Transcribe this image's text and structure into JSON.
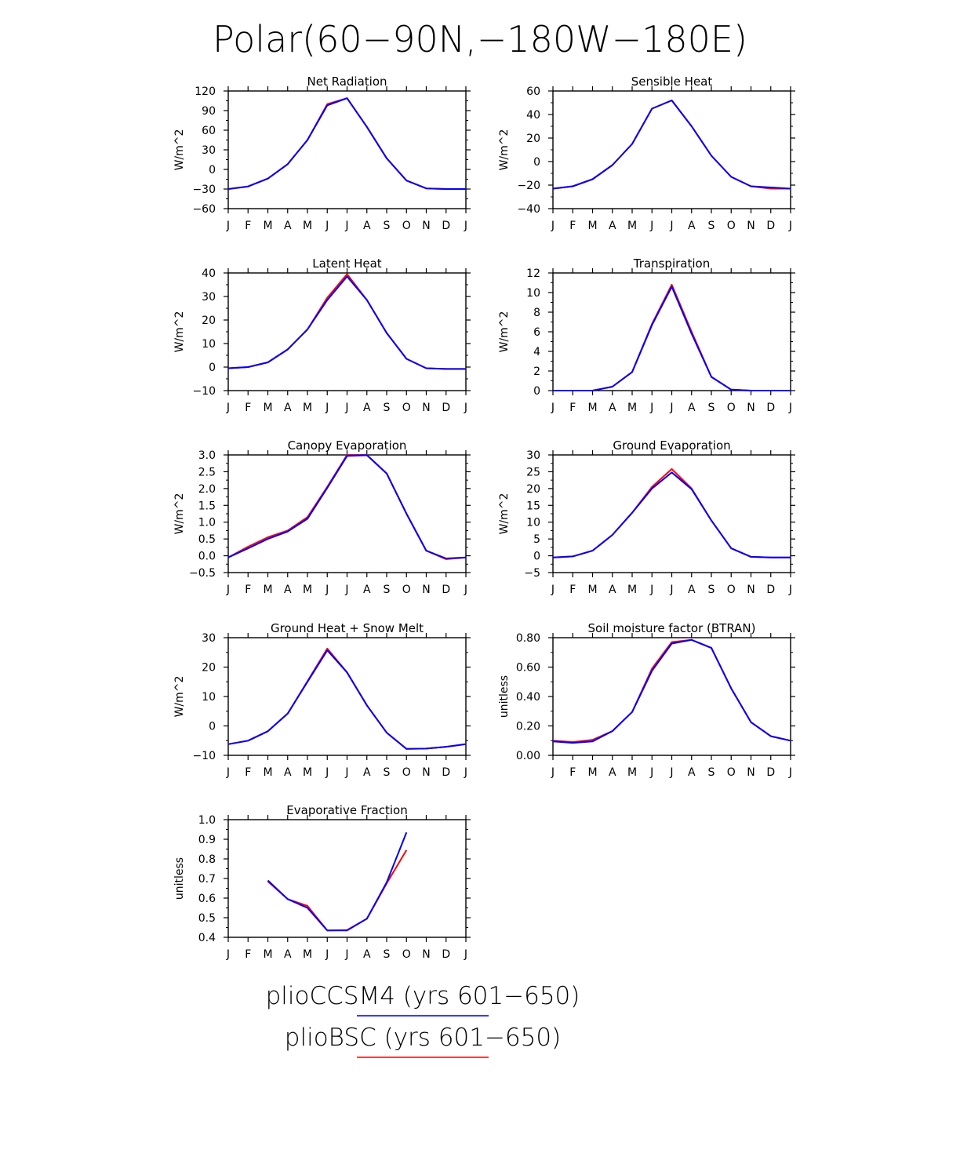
{
  "figure": {
    "title": "Polar(60−90N,−180W−180E)",
    "month_labels": [
      "J",
      "F",
      "M",
      "A",
      "M",
      "J",
      "J",
      "A",
      "S",
      "O",
      "N",
      "D",
      "J"
    ],
    "legend": [
      {
        "label": "plioCCSM4 (yrs 601−650)",
        "color": "#3b3bff"
      },
      {
        "label": "plioBSC (yrs 601−650)",
        "color": "#ff4040"
      }
    ]
  },
  "colors": {
    "series_a": "#ff0000",
    "series_b": "#0000ff"
  },
  "chart_data": [
    {
      "type": "line",
      "title": "Net Radiation",
      "ylabel": "W/m^2",
      "ylim": [
        -60,
        120
      ],
      "yticks": [
        -60,
        -30,
        0,
        30,
        60,
        90,
        120
      ],
      "ytick_labels": [
        "−60",
        "−30",
        "0",
        "30",
        "60",
        "90",
        "120"
      ],
      "series": [
        {
          "values": [
            -30,
            -26,
            -14,
            8,
            45,
            100,
            109,
            65,
            17,
            -17,
            -29,
            -30,
            -30
          ]
        },
        {
          "values": [
            -30,
            -26,
            -14,
            8,
            45,
            98,
            109,
            65,
            17,
            -17,
            -29,
            -30,
            -30
          ]
        }
      ]
    },
    {
      "type": "line",
      "title": "Sensible Heat",
      "ylabel": "W/m^2",
      "ylim": [
        -40,
        60
      ],
      "yticks": [
        -40,
        -20,
        0,
        20,
        40,
        60
      ],
      "ytick_labels": [
        "−40",
        "−20",
        "0",
        "20",
        "40",
        "60"
      ],
      "series": [
        {
          "values": [
            -23,
            -21,
            -15,
            -3,
            15,
            45,
            52,
            30,
            5,
            -13,
            -21,
            -23,
            -23
          ]
        },
        {
          "values": [
            -23,
            -21,
            -15,
            -3,
            15,
            45,
            52,
            30,
            5,
            -13,
            -21,
            -22,
            -23
          ]
        }
      ]
    },
    {
      "type": "line",
      "title": "Latent Heat",
      "ylabel": "W/m^2",
      "ylim": [
        -10,
        40
      ],
      "yticks": [
        -10,
        0,
        10,
        20,
        30,
        40
      ],
      "ytick_labels": [
        "−10",
        "0",
        "10",
        "20",
        "30",
        "40"
      ],
      "series": [
        {
          "values": [
            -0.5,
            0,
            2,
            7.5,
            16,
            29.5,
            39.5,
            28.5,
            14.5,
            3.5,
            -0.5,
            -0.8,
            -0.8
          ]
        },
        {
          "values": [
            -0.5,
            0,
            2,
            7.5,
            16,
            28.5,
            38.5,
            28.5,
            14.5,
            3.5,
            -0.5,
            -0.8,
            -0.8
          ]
        }
      ]
    },
    {
      "type": "line",
      "title": "Transpiration",
      "ylabel": "W/m^2",
      "ylim": [
        0,
        12
      ],
      "yticks": [
        0,
        2,
        4,
        6,
        8,
        10,
        12
      ],
      "ytick_labels": [
        "0",
        "2",
        "4",
        "6",
        "8",
        "10",
        "12"
      ],
      "series": [
        {
          "values": [
            0,
            0,
            0,
            0.4,
            1.9,
            6.8,
            10.8,
            6,
            1.4,
            0.1,
            0,
            0,
            0
          ]
        },
        {
          "values": [
            0,
            0,
            0,
            0.4,
            1.9,
            6.7,
            10.6,
            5.8,
            1.4,
            0.1,
            0,
            0,
            0
          ]
        }
      ]
    },
    {
      "type": "line",
      "title": "Canopy Evaporation",
      "ylabel": "W/m^2",
      "ylim": [
        -0.5,
        3.0
      ],
      "yticks": [
        -0.5,
        0,
        0.5,
        1.0,
        1.5,
        2.0,
        2.5,
        3.0
      ],
      "ytick_labels": [
        "−0.5",
        "0.0",
        "0.5",
        "1.0",
        "1.5",
        "2.0",
        "2.5",
        "3.0"
      ],
      "series": [
        {
          "values": [
            -0.05,
            0.27,
            0.55,
            0.75,
            1.15,
            2.05,
            3.0,
            3.0,
            2.45,
            1.25,
            0.15,
            -0.1,
            -0.05
          ]
        },
        {
          "values": [
            -0.05,
            0.22,
            0.5,
            0.72,
            1.1,
            2.02,
            2.97,
            2.99,
            2.45,
            1.25,
            0.15,
            -0.08,
            -0.05
          ]
        }
      ]
    },
    {
      "type": "line",
      "title": "Ground Evaporation",
      "ylabel": "W/m^2",
      "ylim": [
        -5,
        30
      ],
      "yticks": [
        -5,
        0,
        5,
        10,
        15,
        20,
        25,
        30
      ],
      "ytick_labels": [
        "−5",
        "0",
        "5",
        "10",
        "15",
        "20",
        "25",
        "30"
      ],
      "series": [
        {
          "values": [
            -0.5,
            -0.2,
            1.5,
            6.2,
            12.8,
            20.5,
            25.8,
            20,
            10.5,
            2.2,
            -0.3,
            -0.5,
            -0.5
          ]
        },
        {
          "values": [
            -0.5,
            -0.2,
            1.5,
            6.2,
            12.8,
            20,
            24.8,
            19.8,
            10.5,
            2.2,
            -0.3,
            -0.5,
            -0.5
          ]
        }
      ]
    },
    {
      "type": "line",
      "title": "Ground Heat + Snow Melt",
      "ylabel": "W/m^2",
      "ylim": [
        -10,
        30
      ],
      "yticks": [
        -10,
        0,
        10,
        20,
        30
      ],
      "ytick_labels": [
        "−10",
        "0",
        "10",
        "20",
        "30"
      ],
      "series": [
        {
          "values": [
            -6.2,
            -5,
            -1.8,
            4.2,
            15.2,
            26.3,
            18.2,
            7,
            -2.3,
            -7.8,
            -7.7,
            -7.1,
            -6.2
          ]
        },
        {
          "values": [
            -6.2,
            -5,
            -1.8,
            4.2,
            15,
            25.7,
            18.2,
            7,
            -2.3,
            -7.8,
            -7.7,
            -7.1,
            -6.2
          ]
        }
      ]
    },
    {
      "type": "line",
      "title": "Soil moisture factor (BTRAN)",
      "ylabel": "unitless",
      "ylim": [
        0,
        0.8
      ],
      "yticks": [
        0,
        0.2,
        0.4,
        0.6,
        0.8
      ],
      "ytick_labels": [
        "0.00",
        "0.20",
        "0.40",
        "0.60",
        "0.80"
      ],
      "series": [
        {
          "values": [
            0.1,
            0.09,
            0.105,
            0.165,
            0.295,
            0.59,
            0.77,
            0.785,
            0.73,
            0.455,
            0.225,
            0.13,
            0.1
          ]
        },
        {
          "values": [
            0.095,
            0.085,
            0.095,
            0.165,
            0.295,
            0.575,
            0.76,
            0.785,
            0.73,
            0.455,
            0.225,
            0.13,
            0.1
          ]
        }
      ]
    },
    {
      "type": "line",
      "title": "Evaporative Fraction",
      "ylabel": "unitless",
      "ylim": [
        0.4,
        1.0
      ],
      "yticks": [
        0.4,
        0.5,
        0.6,
        0.7,
        0.8,
        0.9,
        1.0
      ],
      "ytick_labels": [
        "0.4",
        "0.5",
        "0.6",
        "0.7",
        "0.8",
        "0.9",
        "1.0"
      ],
      "series": [
        {
          "values": [
            null,
            null,
            0.685,
            0.595,
            0.56,
            0.435,
            0.437,
            0.495,
            0.675,
            0.845,
            null,
            null,
            null
          ]
        },
        {
          "values": [
            null,
            null,
            0.69,
            0.595,
            0.55,
            0.435,
            0.435,
            0.495,
            0.68,
            0.935,
            null,
            null,
            null
          ]
        }
      ]
    }
  ]
}
